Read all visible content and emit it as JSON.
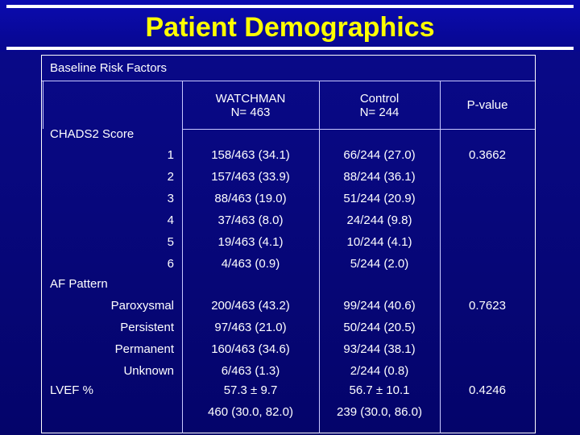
{
  "title": "Patient Demographics",
  "section": "Baseline Risk Factors",
  "headers": {
    "watchman_line1": "WATCHMAN",
    "watchman_line2": "N= 463",
    "control_line1": "Control",
    "control_line2": "N= 244",
    "pvalue": "P-value"
  },
  "chads": {
    "label": "CHADS2  Score",
    "rows": [
      {
        "k": "1",
        "w": "158/463 (34.1)",
        "c": "66/244 (27.0)"
      },
      {
        "k": "2",
        "w": "157/463 (33.9)",
        "c": "88/244 (36.1)"
      },
      {
        "k": "3",
        "w": "88/463 (19.0)",
        "c": "51/244 (20.9)"
      },
      {
        "k": "4",
        "w": "37/463 (8.0)",
        "c": "24/244 (9.8)"
      },
      {
        "k": "5",
        "w": "19/463 (4.1)",
        "c": "10/244 (4.1)"
      },
      {
        "k": "6",
        "w": "4/463 (0.9)",
        "c": "5/244 (2.0)"
      }
    ],
    "p": "0.3662"
  },
  "af": {
    "label": "AF Pattern",
    "rows": [
      {
        "k": "Paroxysmal",
        "w": "200/463 (43.2)",
        "c": "99/244 (40.6)"
      },
      {
        "k": "Persistent",
        "w": "97/463 (21.0)",
        "c": "50/244 (20.5)"
      },
      {
        "k": "Permanent",
        "w": "160/463 (34.6)",
        "c": "93/244 (38.1)"
      },
      {
        "k": "Unknown",
        "w": "6/463 (1.3)",
        "c": "2/244 (0.8)"
      }
    ],
    "p": "0.7623"
  },
  "lvef": {
    "label": "LVEF %",
    "w1": "57.3 ± 9.7",
    "c1": "56.7 ± 10.1",
    "w2": "460 (30.0, 82.0)",
    "c2": "239 (30.0, 86.0)",
    "p": "0.4246"
  }
}
